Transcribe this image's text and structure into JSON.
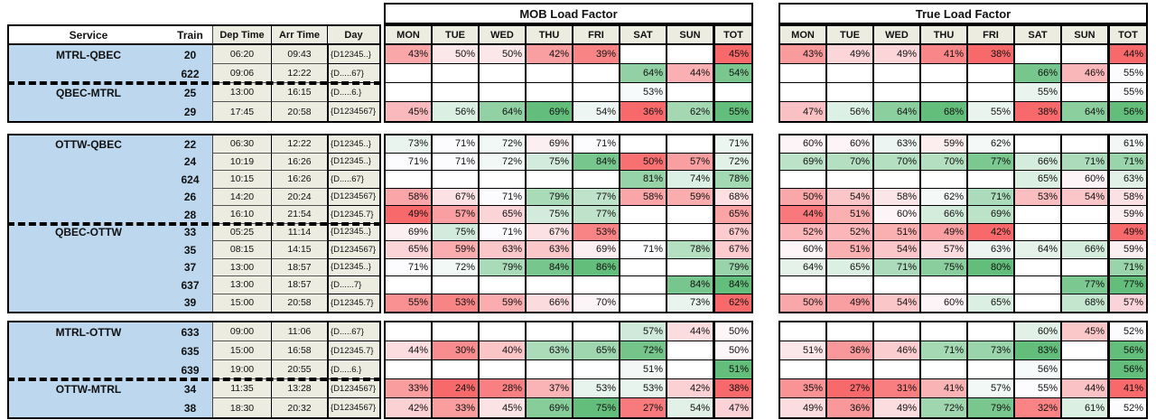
{
  "palette": {
    "scale_red": "#F8696B",
    "scale_white": "#FCFCFF",
    "scale_green": "#63BE7B",
    "blank_cell": "#FFFFFF",
    "service_blue": "#BDD7EE",
    "schedule_beige": "#EDECE1",
    "border_black": "#000000"
  },
  "headers": {
    "service": "Service",
    "train": "Train",
    "dep": "Dep Time",
    "arr": "Arr Time",
    "day": "Day",
    "days": [
      "MON",
      "TUE",
      "WED",
      "THU",
      "FRI",
      "SAT",
      "SUN",
      "TOT"
    ],
    "mob_title": "MOB Load Factor",
    "true_title": "True Load Factor",
    "value_suffix": "%"
  },
  "blocks": [
    {
      "has_header": true,
      "scales": {
        "mob_days": [
          36,
          52.5,
          69
        ],
        "mob_tot": [
          45,
          48,
          55
        ],
        "true_days": [
          38,
          53,
          68
        ],
        "true_tot": [
          44,
          55,
          56
        ]
      },
      "rows": [
        {
          "service": "MTRL-QBEC",
          "train": "20",
          "dep": "06:20",
          "arr": "09:43",
          "day": "{D12345..}",
          "mob": [
            43,
            50,
            50,
            42,
            39,
            null,
            null,
            45
          ],
          "tru": [
            43,
            49,
            49,
            41,
            38,
            null,
            null,
            44
          ]
        },
        {
          "service": "",
          "train": "622",
          "dep": "09:06",
          "arr": "12:22",
          "day": "{D.....67}",
          "mob": [
            null,
            null,
            null,
            null,
            null,
            64,
            44,
            54
          ],
          "tru": [
            null,
            null,
            null,
            null,
            null,
            66,
            46,
            55
          ]
        },
        {
          "service": "QBEC-MTRL",
          "dashed": true,
          "train": "25",
          "dep": "13:00",
          "arr": "16:15",
          "day": "{D.....6.}",
          "mob": [
            null,
            null,
            null,
            null,
            null,
            53,
            null,
            null
          ],
          "tru": [
            null,
            null,
            null,
            null,
            null,
            55,
            null,
            55
          ]
        },
        {
          "service": "",
          "train": "29",
          "dep": "17:45",
          "arr": "20:58",
          "day": "{D1234567}",
          "mob": [
            45,
            56,
            64,
            69,
            54,
            36,
            62,
            55
          ],
          "tru": [
            47,
            56,
            64,
            68,
            55,
            38,
            64,
            56
          ]
        }
      ]
    },
    {
      "has_header": false,
      "scales": {
        "mob_days": [
          49,
          71,
          86
        ],
        "mob_tot": [
          62,
          69.5,
          84
        ],
        "true_days": [
          42,
          61,
          80
        ],
        "true_tot": [
          49,
          60,
          77
        ]
      },
      "rows": [
        {
          "service": "OTTW-QBEC",
          "train": "22",
          "dep": "06:30",
          "arr": "12:22",
          "day": "{D12345..}",
          "mob": [
            73,
            71,
            72,
            69,
            71,
            null,
            null,
            71
          ],
          "tru": [
            60,
            60,
            63,
            59,
            62,
            null,
            null,
            61
          ]
        },
        {
          "service": "",
          "train": "24",
          "dep": "10:19",
          "arr": "16:26",
          "day": "{D12345..}",
          "mob": [
            71,
            71,
            72,
            75,
            84,
            50,
            57,
            72
          ],
          "tru": [
            69,
            70,
            70,
            70,
            77,
            66,
            71,
            71
          ]
        },
        {
          "service": "",
          "train": "624",
          "dep": "10:15",
          "arr": "16:26",
          "day": "{D.....67}",
          "mob": [
            null,
            null,
            null,
            null,
            null,
            81,
            74,
            78
          ],
          "tru": [
            null,
            null,
            null,
            null,
            null,
            65,
            60,
            63
          ]
        },
        {
          "service": "",
          "train": "26",
          "dep": "14:20",
          "arr": "20:24",
          "day": "{D1234567}",
          "mob": [
            58,
            67,
            71,
            79,
            77,
            58,
            59,
            68
          ],
          "tru": [
            50,
            54,
            58,
            62,
            71,
            53,
            54,
            58
          ]
        },
        {
          "service": "",
          "train": "28",
          "dep": "16:10",
          "arr": "21:54",
          "day": "{D12345.7}",
          "mob": [
            49,
            57,
            65,
            75,
            77,
            null,
            null,
            65
          ],
          "tru": [
            44,
            51,
            60,
            66,
            69,
            null,
            null,
            59
          ]
        },
        {
          "service": "QBEC-OTTW",
          "dashed": true,
          "train": "33",
          "dep": "05:25",
          "arr": "11:14",
          "day": "{D12345..}",
          "mob": [
            69,
            75,
            71,
            67,
            53,
            null,
            null,
            67
          ],
          "tru": [
            52,
            52,
            51,
            49,
            42,
            null,
            null,
            49
          ]
        },
        {
          "service": "",
          "train": "35",
          "dep": "08:15",
          "arr": "14:15",
          "day": "{D1234567}",
          "mob": [
            65,
            59,
            63,
            63,
            69,
            71,
            78,
            67
          ],
          "tru": [
            60,
            51,
            54,
            57,
            63,
            64,
            66,
            59
          ]
        },
        {
          "service": "",
          "train": "37",
          "dep": "13:00",
          "arr": "18:57",
          "day": "{D12345..}",
          "mob": [
            71,
            72,
            79,
            84,
            86,
            null,
            null,
            79
          ],
          "tru": [
            64,
            65,
            71,
            75,
            80,
            null,
            null,
            71
          ]
        },
        {
          "service": "",
          "train": "637",
          "dep": "13:00",
          "arr": "18:57",
          "day": "{D......7}",
          "mob": [
            null,
            null,
            null,
            null,
            null,
            null,
            84,
            84
          ],
          "tru": [
            null,
            null,
            null,
            null,
            null,
            null,
            77,
            77
          ]
        },
        {
          "service": "",
          "train": "39",
          "dep": "15:00",
          "arr": "20:58",
          "day": "{D12345.7}",
          "mob": [
            55,
            53,
            59,
            66,
            70,
            null,
            73,
            62
          ],
          "tru": [
            50,
            49,
            54,
            60,
            65,
            null,
            68,
            57
          ]
        }
      ]
    },
    {
      "has_header": false,
      "scales": {
        "mob_days": [
          24,
          49.5,
          75
        ],
        "mob_tot": [
          38,
          50.5,
          51
        ],
        "true_days": [
          27,
          55,
          83
        ],
        "true_tot": [
          41,
          52,
          56
        ]
      },
      "rows": [
        {
          "service": "MTRL-OTTW",
          "train": "633",
          "dep": "09:00",
          "arr": "11:06",
          "day": "{D.....67}",
          "mob": [
            null,
            null,
            null,
            null,
            null,
            57,
            44,
            50
          ],
          "tru": [
            null,
            null,
            null,
            null,
            null,
            60,
            45,
            52
          ]
        },
        {
          "service": "",
          "train": "635",
          "dep": "15:00",
          "arr": "16:58",
          "day": "{D12345.7}",
          "mob": [
            44,
            30,
            40,
            63,
            65,
            72,
            null,
            50
          ],
          "tru": [
            51,
            36,
            46,
            71,
            73,
            83,
            null,
            56
          ]
        },
        {
          "service": "",
          "train": "639",
          "dep": "19:00",
          "arr": "20:55",
          "day": "{D.....6.}",
          "mob": [
            null,
            null,
            null,
            null,
            null,
            51,
            null,
            51
          ],
          "tru": [
            null,
            null,
            null,
            null,
            null,
            56,
            null,
            56
          ]
        },
        {
          "service": "OTTW-MTRL",
          "dashed": true,
          "train": "34",
          "dep": "11:35",
          "arr": "13:28",
          "day": "{D1234567}",
          "mob": [
            33,
            24,
            28,
            37,
            53,
            53,
            42,
            38
          ],
          "tru": [
            35,
            27,
            31,
            41,
            57,
            55,
            44,
            41
          ]
        },
        {
          "service": "",
          "train": "38",
          "dep": "18:30",
          "arr": "20:32",
          "day": "{D1234567}",
          "mob": [
            42,
            33,
            45,
            69,
            75,
            27,
            54,
            47
          ],
          "tru": [
            49,
            36,
            49,
            72,
            79,
            32,
            61,
            52
          ]
        }
      ]
    }
  ]
}
